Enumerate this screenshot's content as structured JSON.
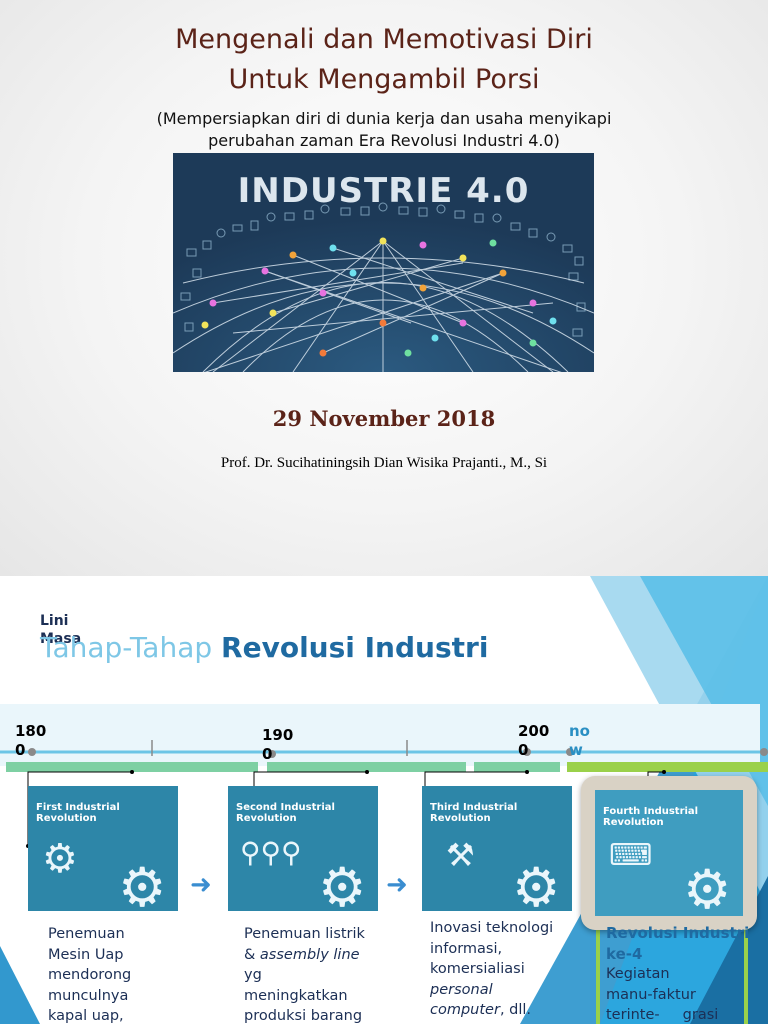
{
  "slide1": {
    "title_line1": "Mengenali dan Memotivasi Diri",
    "title_line2": "Untuk Mengambil Porsi",
    "subtitle_line1": "(Mempersiapkan diri di dunia kerja dan usaha menyikapi",
    "subtitle_line2": "perubahan zaman Era Revolusi Industri 4.0)",
    "banner_title": "INDUSTRIE 4.0",
    "date": "29 November 2018",
    "author": "Prof. Dr. Sucihatiningsih Dian Wisika Prajanti., M., Si"
  },
  "slide2": {
    "lini_masa_1": "Lini",
    "lini_masa_2": "Masa",
    "heading_plain": "Tahap-Tahap ",
    "heading_bold": "Revolusi Industri",
    "years": {
      "y1800_a": "180",
      "y1800_b": "0",
      "y1900_a": "190",
      "y1900_b": "0",
      "y2000_a": "200",
      "y2000_b": "0",
      "now_a": "no",
      "now_b": "w"
    },
    "cards": [
      {
        "title": "First Industrial Revolution",
        "icon": "steam-engine-icon"
      },
      {
        "title": "Second Industrial Revolution",
        "icon": "assembly-line-icon"
      },
      {
        "title": "Third Industrial Revolution",
        "icon": "robot-arm-icon"
      },
      {
        "title": "Fourth Industrial Revolution",
        "icon": "connected-devices-icon"
      }
    ],
    "desc1": {
      "l1": "Penemuan",
      "l2": "Mesin Uap",
      "l3": "mendorong",
      "l4": "munculnya",
      "l5": "kapal uap,"
    },
    "desc2": {
      "l1": "Penemuan listrik",
      "l2a": "& ",
      "l2b": "assembly line",
      "l3": "yg",
      "l4": "meningkatkan",
      "l5": "produksi barang"
    },
    "desc3": {
      "l1": "Inovasi teknologi",
      "l2": "informasi,",
      "l3": "komersialiasi",
      "l4": "personal",
      "l5a": "computer",
      "l5b": ", dll."
    },
    "desc4": {
      "l1": "Revolusi Industri",
      "l2": "ke-4",
      "l3": "Kegiatan",
      "l4": "manu-faktur",
      "l5": "terinte-     grasi"
    },
    "colors": {
      "title_brown": "#5b2318",
      "heading_light": "#7ec7e6",
      "heading_dark": "#1f6aa1",
      "timeline_line": "#6cc5e6",
      "segment_green": "#7ed0a3",
      "segment_lime": "#9ad14a",
      "card_blue": "#2d86a8",
      "arrow_blue": "#3a8dd0"
    }
  }
}
